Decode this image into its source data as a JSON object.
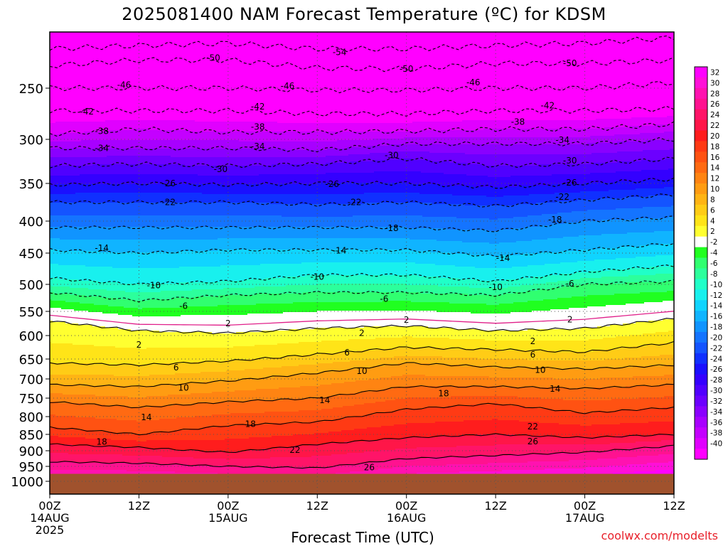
{
  "chart_data": {
    "type": "heatmap",
    "title": "2025081400 NAM Forecast Temperature (ºC) for KDSM",
    "xlabel": "Forecast Time (UTC)",
    "credit": "coolwx.com/modelts",
    "y_axis": {
      "quantity": "pressure (hPa)",
      "direction": "decreasing-upward",
      "ylim": [
        1040,
        200
      ],
      "ticks": [
        250,
        300,
        350,
        400,
        450,
        500,
        550,
        600,
        650,
        700,
        750,
        800,
        850,
        900,
        950,
        1000
      ]
    },
    "x_axis": {
      "xlim_hours": [
        0,
        84
      ],
      "ticks": [
        {
          "hour": 0,
          "line1": "00Z",
          "line2": "14AUG",
          "line3": "2025"
        },
        {
          "hour": 12,
          "line1": "12Z",
          "line2": "",
          "line3": ""
        },
        {
          "hour": 24,
          "line1": "00Z",
          "line2": "15AUG",
          "line3": ""
        },
        {
          "hour": 36,
          "line1": "12Z",
          "line2": "",
          "line3": ""
        },
        {
          "hour": 48,
          "line1": "00Z",
          "line2": "16AUG",
          "line3": ""
        },
        {
          "hour": 60,
          "line1": "12Z",
          "line2": "",
          "line3": ""
        },
        {
          "hour": 72,
          "line1": "00Z",
          "line2": "17AUG",
          "line3": ""
        },
        {
          "hour": 84,
          "line1": "12Z",
          "line2": "",
          "line3": ""
        }
      ]
    },
    "grid": true,
    "colorbar": {
      "position": "right",
      "labels": [
        32,
        30,
        28,
        26,
        24,
        22,
        20,
        18,
        16,
        14,
        12,
        10,
        8,
        6,
        4,
        2,
        -2,
        -4,
        -6,
        -8,
        -10,
        -12,
        -14,
        -16,
        -18,
        -20,
        -22,
        -24,
        -26,
        -28,
        -30,
        -32,
        -34,
        -36,
        -38,
        -40
      ],
      "colors": [
        "#ff00ff",
        "#ff10d8",
        "#ff12b0",
        "#ff1290",
        "#ff1468",
        "#ff1648",
        "#ff1d1d",
        "#ff3a14",
        "#ff5212",
        "#ff6a12",
        "#ff8412",
        "#ff9c12",
        "#ffb414",
        "#ffcc16",
        "#ffe418",
        "#ffff30",
        "#ffffff",
        "#20ff20",
        "#30ff70",
        "#2cff9c",
        "#20ffc8",
        "#18f0ee",
        "#10d4ff",
        "#10b4ff",
        "#1094ff",
        "#1474ff",
        "#1454ff",
        "#1030ff",
        "#1a10ff",
        "#3400ff",
        "#5000ff",
        "#6c00ff",
        "#8a00ff",
        "#a800ff",
        "#c400ff",
        "#e000ff",
        "#ff00ff"
      ]
    },
    "isotherm_levels_hpa": [
      {
        "temp": 26,
        "by_hour": [
          [
            0,
            935
          ],
          [
            12,
            940
          ],
          [
            24,
            950
          ],
          [
            36,
            955
          ],
          [
            48,
            925
          ],
          [
            60,
            915
          ],
          [
            72,
            905
          ],
          [
            84,
            885
          ]
        ]
      },
      {
        "temp": 22,
        "by_hour": [
          [
            0,
            880
          ],
          [
            12,
            890
          ],
          [
            24,
            905
          ],
          [
            36,
            880
          ],
          [
            48,
            860
          ],
          [
            60,
            850
          ],
          [
            72,
            860
          ],
          [
            84,
            850
          ]
        ]
      },
      {
        "temp": 18,
        "by_hour": [
          [
            0,
            830
          ],
          [
            12,
            850
          ],
          [
            24,
            825
          ],
          [
            36,
            815
          ],
          [
            48,
            780
          ],
          [
            60,
            765
          ],
          [
            72,
            790
          ],
          [
            84,
            775
          ]
        ]
      },
      {
        "temp": 14,
        "by_hour": [
          [
            0,
            760
          ],
          [
            12,
            775
          ],
          [
            24,
            760
          ],
          [
            36,
            750
          ],
          [
            48,
            720
          ],
          [
            60,
            720
          ],
          [
            72,
            725
          ],
          [
            84,
            715
          ]
        ]
      },
      {
        "temp": 10,
        "by_hour": [
          [
            0,
            715
          ],
          [
            12,
            720
          ],
          [
            24,
            705
          ],
          [
            36,
            685
          ],
          [
            48,
            660
          ],
          [
            60,
            670
          ],
          [
            72,
            675
          ],
          [
            84,
            665
          ]
        ]
      },
      {
        "temp": 6,
        "by_hour": [
          [
            0,
            660
          ],
          [
            12,
            665
          ],
          [
            24,
            655
          ],
          [
            36,
            640
          ],
          [
            48,
            625
          ],
          [
            60,
            630
          ],
          [
            72,
            635
          ],
          [
            84,
            615
          ]
        ]
      },
      {
        "temp": 2,
        "by_hour": [
          [
            0,
            570
          ],
          [
            12,
            590
          ],
          [
            24,
            595
          ],
          [
            36,
            585
          ],
          [
            48,
            580
          ],
          [
            60,
            590
          ],
          [
            72,
            585
          ],
          [
            84,
            565
          ]
        ]
      },
      {
        "temp": -6,
        "by_hour": [
          [
            0,
            515
          ],
          [
            12,
            530
          ],
          [
            24,
            520
          ],
          [
            36,
            515
          ],
          [
            48,
            515
          ],
          [
            60,
            520
          ],
          [
            72,
            500
          ],
          [
            84,
            495
          ]
        ]
      },
      {
        "temp": -10,
        "by_hour": [
          [
            0,
            490
          ],
          [
            12,
            500
          ],
          [
            24,
            495
          ],
          [
            36,
            485
          ],
          [
            48,
            485
          ],
          [
            60,
            495
          ],
          [
            72,
            480
          ],
          [
            84,
            470
          ]
        ]
      },
      {
        "temp": -14,
        "by_hour": [
          [
            0,
            445
          ],
          [
            12,
            450
          ],
          [
            24,
            445
          ],
          [
            36,
            445
          ],
          [
            48,
            445
          ],
          [
            60,
            455
          ],
          [
            72,
            445
          ],
          [
            84,
            435
          ]
        ]
      },
      {
        "temp": -18,
        "by_hour": [
          [
            0,
            410
          ],
          [
            12,
            410
          ],
          [
            24,
            410
          ],
          [
            36,
            410
          ],
          [
            48,
            410
          ],
          [
            60,
            415
          ],
          [
            72,
            400
          ],
          [
            84,
            395
          ]
        ]
      },
      {
        "temp": -22,
        "by_hour": [
          [
            0,
            375
          ],
          [
            12,
            375
          ],
          [
            24,
            375
          ],
          [
            36,
            378
          ],
          [
            48,
            375
          ],
          [
            60,
            380
          ],
          [
            72,
            372
          ],
          [
            84,
            365
          ]
        ]
      },
      {
        "temp": -26,
        "by_hour": [
          [
            0,
            352
          ],
          [
            12,
            350
          ],
          [
            24,
            352
          ],
          [
            36,
            350
          ],
          [
            48,
            350
          ],
          [
            60,
            355
          ],
          [
            72,
            350
          ],
          [
            84,
            345
          ]
        ]
      },
      {
        "temp": -30,
        "by_hour": [
          [
            0,
            330
          ],
          [
            12,
            328
          ],
          [
            24,
            330
          ],
          [
            36,
            328
          ],
          [
            48,
            322
          ],
          [
            60,
            330
          ],
          [
            72,
            328
          ],
          [
            84,
            322
          ]
        ]
      },
      {
        "temp": -34,
        "by_hour": [
          [
            0,
            310
          ],
          [
            12,
            310
          ],
          [
            24,
            310
          ],
          [
            36,
            312
          ],
          [
            48,
            305
          ],
          [
            60,
            305
          ],
          [
            72,
            305
          ],
          [
            84,
            300
          ]
        ]
      },
      {
        "temp": -38,
        "by_hour": [
          [
            0,
            295
          ],
          [
            12,
            290
          ],
          [
            24,
            293
          ],
          [
            36,
            293
          ],
          [
            48,
            292
          ],
          [
            60,
            290
          ],
          [
            72,
            290
          ],
          [
            84,
            285
          ]
        ]
      },
      {
        "temp": -42,
        "by_hour": [
          [
            0,
            272
          ],
          [
            12,
            272
          ],
          [
            24,
            272
          ],
          [
            36,
            275
          ],
          [
            48,
            275
          ],
          [
            60,
            272
          ],
          [
            72,
            272
          ],
          [
            84,
            270
          ]
        ]
      },
      {
        "temp": -46,
        "by_hour": [
          [
            0,
            250
          ],
          [
            12,
            250
          ],
          [
            24,
            250
          ],
          [
            36,
            252
          ],
          [
            48,
            252
          ],
          [
            60,
            250
          ],
          [
            72,
            250
          ],
          [
            84,
            245
          ]
        ]
      },
      {
        "temp": -50,
        "by_hour": [
          [
            0,
            230
          ],
          [
            12,
            225
          ],
          [
            24,
            225
          ],
          [
            36,
            232
          ],
          [
            48,
            233
          ],
          [
            60,
            228
          ],
          [
            72,
            228
          ],
          [
            84,
            225
          ]
        ]
      },
      {
        "temp": -54,
        "by_hour": [
          [
            0,
            215
          ],
          [
            12,
            212
          ],
          [
            24,
            210
          ],
          [
            36,
            215
          ],
          [
            48,
            215
          ],
          [
            60,
            212
          ],
          [
            72,
            210
          ],
          [
            84,
            205
          ]
        ]
      }
    ],
    "contour_labels": [
      {
        "text": "-54",
        "hour": 39,
        "p": 218
      },
      {
        "text": "-50",
        "hour": 22,
        "p": 223
      },
      {
        "text": "-50",
        "hour": 48,
        "p": 233
      },
      {
        "text": "-50",
        "hour": 70,
        "p": 228
      },
      {
        "text": "-46",
        "hour": 10,
        "p": 247
      },
      {
        "text": "-46",
        "hour": 32,
        "p": 248
      },
      {
        "text": "-46",
        "hour": 57,
        "p": 245
      },
      {
        "text": "-42",
        "hour": 5,
        "p": 273
      },
      {
        "text": "-42",
        "hour": 28,
        "p": 268
      },
      {
        "text": "-42",
        "hour": 67,
        "p": 267
      },
      {
        "text": "-38",
        "hour": 7,
        "p": 292
      },
      {
        "text": "-38",
        "hour": 28,
        "p": 288
      },
      {
        "text": "-38",
        "hour": 63,
        "p": 283
      },
      {
        "text": "-34",
        "hour": 7,
        "p": 310
      },
      {
        "text": "-34",
        "hour": 28,
        "p": 308
      },
      {
        "text": "-34",
        "hour": 69,
        "p": 301
      },
      {
        "text": "-30",
        "hour": 23,
        "p": 334
      },
      {
        "text": "-30",
        "hour": 46,
        "p": 318
      },
      {
        "text": "-30",
        "hour": 70,
        "p": 324
      },
      {
        "text": "-26",
        "hour": 16,
        "p": 350
      },
      {
        "text": "-26",
        "hour": 38,
        "p": 351
      },
      {
        "text": "-26",
        "hour": 70,
        "p": 349
      },
      {
        "text": "-22",
        "hour": 16,
        "p": 375
      },
      {
        "text": "-22",
        "hour": 41,
        "p": 375
      },
      {
        "text": "-22",
        "hour": 69,
        "p": 368
      },
      {
        "text": "-18",
        "hour": 46,
        "p": 411
      },
      {
        "text": "-18",
        "hour": 68,
        "p": 398
      },
      {
        "text": "-14",
        "hour": 7,
        "p": 442
      },
      {
        "text": "-14",
        "hour": 39,
        "p": 446
      },
      {
        "text": "-14",
        "hour": 61,
        "p": 458
      },
      {
        "text": "-10",
        "hour": 14,
        "p": 502
      },
      {
        "text": "-10",
        "hour": 36,
        "p": 488
      },
      {
        "text": "-10",
        "hour": 60,
        "p": 505
      },
      {
        "text": "-6",
        "hour": 18,
        "p": 540
      },
      {
        "text": "-6",
        "hour": 45,
        "p": 527
      },
      {
        "text": "-6",
        "hour": 70,
        "p": 499
      },
      {
        "text": "2",
        "hour": 24,
        "p": 575
      },
      {
        "text": "2",
        "hour": 48,
        "p": 568
      },
      {
        "text": "2",
        "hour": 70,
        "p": 567
      },
      {
        "text": "2",
        "hour": 12,
        "p": 620
      },
      {
        "text": "2",
        "hour": 42,
        "p": 595
      },
      {
        "text": "2",
        "hour": 65,
        "p": 612
      },
      {
        "text": "6",
        "hour": 17,
        "p": 671
      },
      {
        "text": "6",
        "hour": 40,
        "p": 636
      },
      {
        "text": "6",
        "hour": 65,
        "p": 641
      },
      {
        "text": "10",
        "hour": 18,
        "p": 723
      },
      {
        "text": "10",
        "hour": 42,
        "p": 680
      },
      {
        "text": "10",
        "hour": 66,
        "p": 678
      },
      {
        "text": "14",
        "hour": 13,
        "p": 802
      },
      {
        "text": "14",
        "hour": 37,
        "p": 756
      },
      {
        "text": "14",
        "hour": 68,
        "p": 726
      },
      {
        "text": "18",
        "hour": 7,
        "p": 873
      },
      {
        "text": "18",
        "hour": 27,
        "p": 821
      },
      {
        "text": "18",
        "hour": 53,
        "p": 738
      },
      {
        "text": "22",
        "hour": 33,
        "p": 898
      },
      {
        "text": "22",
        "hour": 65,
        "p": 828
      },
      {
        "text": "26",
        "hour": 43,
        "p": 953
      },
      {
        "text": "26",
        "hour": 65,
        "p": 872
      }
    ]
  }
}
